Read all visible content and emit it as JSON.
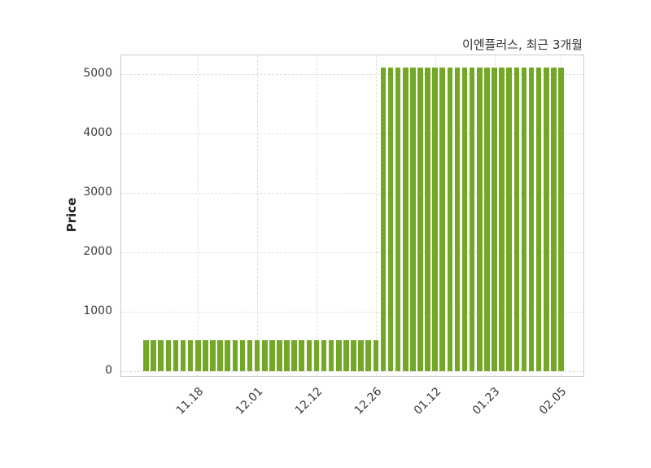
{
  "chart_data": {
    "type": "bar",
    "title": "이엔플러스, 최근 3개월",
    "ylabel": "Price",
    "xlabel": "",
    "ylim": [
      0,
      5300
    ],
    "yticks": [
      0,
      1000,
      2000,
      3000,
      4000,
      5000
    ],
    "xticks": [
      {
        "bar_index": 7,
        "label": "11.18"
      },
      {
        "bar_index": 15,
        "label": "12.01"
      },
      {
        "bar_index": 23,
        "label": "12.12"
      },
      {
        "bar_index": 31,
        "label": "12.26"
      },
      {
        "bar_index": 39,
        "label": "01.12"
      },
      {
        "bar_index": 47,
        "label": "01.23"
      },
      {
        "bar_index": 56,
        "label": "02.05"
      }
    ],
    "values": [
      520,
      520,
      520,
      520,
      520,
      520,
      520,
      520,
      520,
      520,
      520,
      520,
      520,
      520,
      520,
      520,
      520,
      520,
      520,
      520,
      520,
      520,
      520,
      520,
      520,
      520,
      520,
      520,
      520,
      520,
      520,
      520,
      5110,
      5110,
      5110,
      5110,
      5110,
      5110,
      5110,
      5110,
      5110,
      5110,
      5110,
      5110,
      5110,
      5110,
      5110,
      5110,
      5110,
      5110,
      5110,
      5110,
      5110,
      5110,
      5110,
      5110,
      5110
    ],
    "bar_color": "#72a826",
    "grid": true,
    "grid_color": "#dedede",
    "legend_position": "none"
  }
}
